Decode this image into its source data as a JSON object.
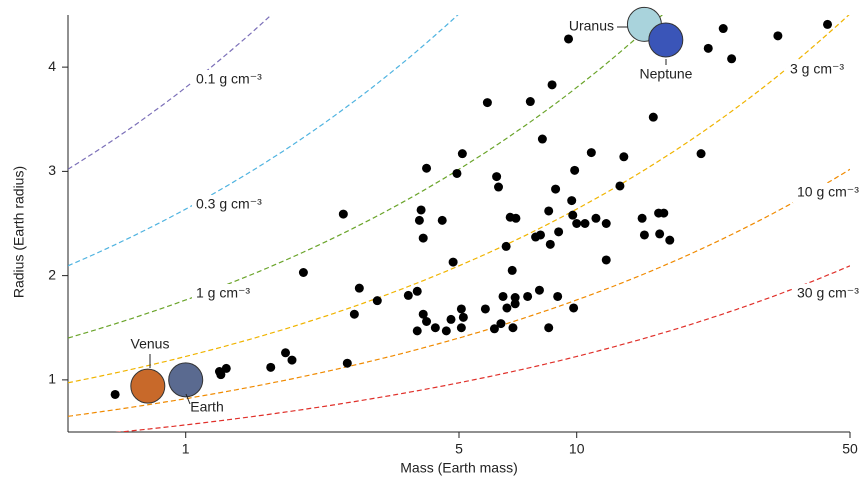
{
  "chart_data": {
    "type": "scatter",
    "x_label": "Mass (Earth mass)",
    "y_label": "Radius (Earth radius)",
    "log_x": true,
    "xlim": [
      0.5,
      50
    ],
    "ylim": [
      0.5,
      4.5
    ],
    "xticks": [
      1,
      5,
      10,
      50
    ],
    "yticks": [
      1,
      2,
      3,
      4
    ],
    "color": "#000000",
    "x": [
      0.66,
      1.22,
      1.23,
      1.27,
      1.65,
      1.8,
      1.87,
      2.0,
      2.53,
      2.59,
      2.7,
      2.78,
      3.09,
      3.71,
      3.91,
      3.91,
      3.96,
      4.0,
      4.05,
      4.13,
      4.05,
      4.13,
      4.35,
      4.53,
      4.64,
      4.83,
      4.77,
      4.94,
      5.07,
      5.1,
      5.07,
      5.13,
      5.91,
      5.84,
      6.24,
      6.31,
      6.16,
      6.4,
      6.48,
      6.6,
      6.63,
      6.76,
      6.84,
      6.87,
      6.99,
      6.96,
      6.96,
      7.49,
      7.61,
      7.85,
      8.03,
      8.08,
      8.17,
      8.48,
      8.48,
      8.56,
      8.65,
      8.83,
      8.94,
      8.99,
      9.53,
      9.71,
      9.82,
      9.77,
      9.88,
      10.0,
      10.5,
      10.9,
      11.2,
      11.9,
      11.9,
      12.9,
      13.2,
      14.7,
      14.9,
      15.7,
      16.2,
      16.3,
      16.7,
      17.3,
      20.8,
      21.7,
      23.7,
      24.9,
      32.7,
      43.8
    ],
    "values": [
      0.86,
      1.08,
      1.05,
      1.11,
      1.12,
      1.26,
      1.19,
      2.03,
      2.59,
      1.16,
      1.63,
      1.88,
      1.76,
      1.81,
      1.85,
      1.47,
      2.53,
      2.63,
      2.36,
      3.03,
      1.63,
      1.56,
      1.5,
      2.53,
      1.47,
      2.13,
      1.58,
      2.98,
      1.68,
      3.17,
      1.5,
      1.6,
      3.66,
      1.68,
      2.95,
      2.85,
      1.49,
      1.54,
      1.8,
      2.28,
      1.69,
      2.56,
      2.05,
      1.5,
      2.55,
      1.79,
      1.73,
      1.8,
      3.67,
      2.37,
      1.86,
      2.39,
      3.31,
      2.62,
      1.5,
      2.3,
      3.83,
      2.83,
      1.8,
      2.42,
      4.27,
      2.72,
      1.69,
      2.58,
      3.01,
      2.5,
      2.5,
      3.18,
      2.55,
      2.5,
      2.15,
      2.86,
      3.14,
      2.55,
      2.39,
      3.52,
      2.6,
      2.4,
      2.6,
      2.34,
      3.17,
      4.18,
      4.37,
      4.08,
      4.3,
      4.41
    ],
    "planets": [
      {
        "name": "Venus",
        "x": 0.8,
        "y": 0.94,
        "color": "#c8692a"
      },
      {
        "name": "Earth",
        "x": 1.0,
        "y": 1.0,
        "color": "#5a6a90"
      },
      {
        "name": "Uranus",
        "x": 14.9,
        "y": 4.41,
        "color": "#a9d3dc"
      },
      {
        "name": "Neptune",
        "x": 16.9,
        "y": 4.26,
        "color": "#3a55b8"
      }
    ],
    "density_curves": [
      {
        "density": 0.1,
        "label": "0.1 g cm⁻³",
        "color": "#7b6fb8"
      },
      {
        "density": 0.3,
        "label": "0.3 g cm⁻³",
        "color": "#4fb3e0"
      },
      {
        "density": 1,
        "label": "1 g cm⁻³",
        "color": "#6aa42a"
      },
      {
        "density": 3,
        "label": "3 g cm⁻³",
        "color": "#f0b400"
      },
      {
        "density": 10,
        "label": "10 g cm⁻³",
        "color": "#f08a00"
      },
      {
        "density": 30,
        "label": "30 g cm⁻³",
        "color": "#e0302a"
      }
    ]
  }
}
